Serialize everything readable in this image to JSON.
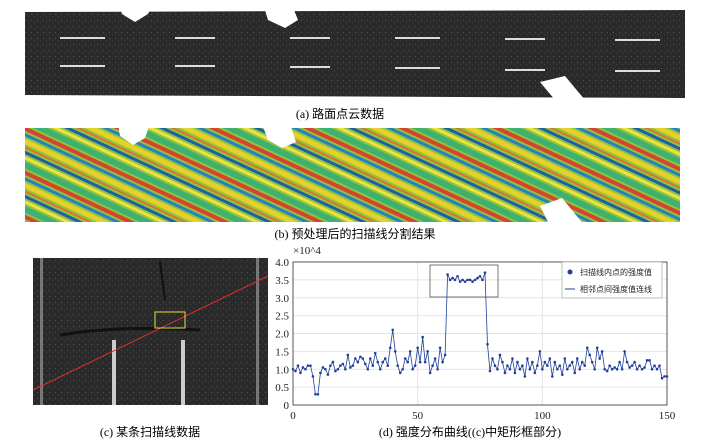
{
  "captions": {
    "a": "(a) 路面点云数据",
    "b": "(b) 预处理后的扫描线分割结果",
    "c": "(c) 某条扫描线数据",
    "d": "(d) 强度分布曲线((c)中矩形框部分)"
  },
  "chart_data": {
    "type": "line",
    "y_multiplier": "×10^4",
    "x": [
      0,
      1,
      2,
      3,
      4,
      5,
      6,
      7,
      8,
      9,
      10,
      11,
      12,
      13,
      14,
      15,
      16,
      17,
      18,
      19,
      20,
      21,
      22,
      23,
      24,
      25,
      26,
      27,
      28,
      29,
      30,
      31,
      32,
      33,
      34,
      35,
      36,
      37,
      38,
      39,
      40,
      41,
      42,
      43,
      44,
      45,
      46,
      47,
      48,
      49,
      50,
      51,
      52,
      53,
      54,
      55,
      56,
      57,
      58,
      59,
      60,
      61,
      62,
      63,
      64,
      65,
      66,
      67,
      68,
      69,
      70,
      71,
      72,
      73,
      74,
      75,
      76,
      77,
      78,
      79,
      80,
      81,
      82,
      83,
      84,
      85,
      86,
      87,
      88,
      89,
      90,
      91,
      92,
      93,
      94,
      95,
      96,
      97,
      98,
      99,
      100,
      101,
      102,
      103,
      104,
      105,
      106,
      107,
      108,
      109,
      110,
      111,
      112,
      113,
      114,
      115,
      116,
      117,
      118,
      119,
      120,
      121,
      122,
      123,
      124,
      125,
      126,
      127,
      128,
      129,
      130,
      131,
      132,
      133,
      134,
      135,
      136,
      137,
      138,
      139,
      140,
      141,
      142,
      143,
      144,
      145,
      146,
      147,
      148,
      149,
      150
    ],
    "series": [
      {
        "name": "扫描线内点的强度值",
        "line_name": "相邻点间强度值连线",
        "color": "#1f3f9a",
        "values": [
          1.0,
          0.95,
          1.1,
          0.9,
          1.05,
          1.0,
          1.1,
          1.1,
          0.8,
          0.3,
          0.3,
          0.9,
          1.05,
          1.0,
          0.85,
          1.1,
          1.2,
          0.95,
          1.0,
          1.1,
          1.15,
          1.0,
          1.4,
          1.05,
          1.1,
          1.3,
          1.2,
          1.35,
          1.3,
          1.15,
          1.0,
          1.3,
          1.1,
          1.45,
          1.2,
          1.0,
          1.2,
          1.3,
          1.1,
          1.6,
          2.1,
          1.5,
          1.1,
          0.9,
          1.0,
          1.3,
          1.2,
          1.5,
          1.0,
          1.1,
          1.6,
          1.2,
          1.9,
          1.2,
          1.5,
          0.9,
          1.1,
          1.3,
          1.0,
          1.6,
          1.2,
          1.4,
          3.65,
          3.5,
          3.55,
          3.5,
          3.6,
          3.45,
          3.5,
          3.45,
          3.5,
          3.5,
          3.45,
          3.5,
          3.55,
          3.6,
          3.5,
          3.7,
          1.7,
          0.95,
          1.3,
          1.1,
          1.0,
          1.4,
          1.2,
          0.9,
          1.1,
          1.0,
          1.3,
          0.9,
          1.2,
          1.0,
          1.1,
          0.8,
          1.3,
          1.0,
          1.2,
          0.9,
          1.1,
          1.5,
          1.0,
          1.2,
          1.1,
          1.3,
          0.8,
          1.2,
          1.0,
          1.1,
          0.85,
          1.3,
          1.0,
          1.1,
          1.2,
          0.9,
          1.3,
          1.0,
          1.2,
          1.1,
          1.6,
          1.4,
          1.2,
          1.0,
          1.6,
          1.3,
          1.5,
          1.0,
          0.95,
          1.1,
          1.0,
          1.05,
          1.0,
          1.2,
          1.0,
          1.5,
          1.2,
          1.05,
          1.1,
          1.2,
          1.0,
          1.1,
          1.0,
          1.05,
          1.25,
          1.25,
          1.0,
          1.1,
          1.0,
          1.1,
          0.75,
          0.8,
          0.8
        ]
      }
    ],
    "xlim": [
      0,
      150
    ],
    "xticks": [
      0,
      50,
      100,
      150
    ],
    "ylim": [
      0,
      4
    ],
    "yticks": [
      0,
      0.5,
      {
        "value": 1,
        "label": "1.0"
      },
      1.5,
      {
        "value": 2,
        "label": "2.0"
      },
      2.5,
      {
        "value": 3,
        "label": "3.0"
      },
      3.5,
      {
        "value": 4,
        "label": "4.0"
      }
    ],
    "grid": true
  }
}
